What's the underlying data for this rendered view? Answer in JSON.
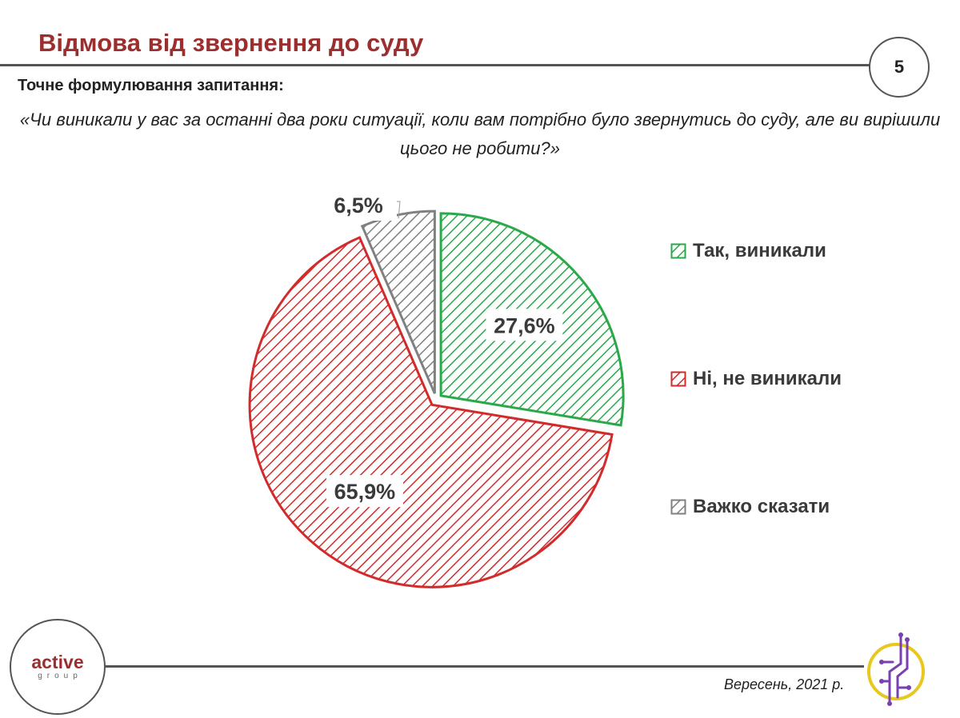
{
  "header": {
    "title": "Відмова від звернення до суду",
    "page_number": "5"
  },
  "question": {
    "label": "Точне формулювання запитання:",
    "text": "«Чи виникали у вас за останні два роки ситуації, коли вам потрібно було звернутись до суду, але ви вирішили цього не робити?»"
  },
  "chart_data": {
    "type": "pie",
    "title": "",
    "categories": [
      "Так, виникали",
      "Ні, не виникали",
      "Важко сказати"
    ],
    "values": [
      27.6,
      65.9,
      6.5
    ],
    "labels": [
      "27,6%",
      "65,9%",
      "6,5%"
    ],
    "colors": [
      "#2aa84a",
      "#d22b2b",
      "#808080"
    ],
    "pattern": "diagonal-hatch",
    "exploded": true,
    "legend_position": "right",
    "start": "12 o'clock, clockwise"
  },
  "footer": {
    "logo_main": "active",
    "logo_sub": "group",
    "date": "Вересень, 2021 р.",
    "emblem_icon": "circuit-emblem-icon"
  }
}
